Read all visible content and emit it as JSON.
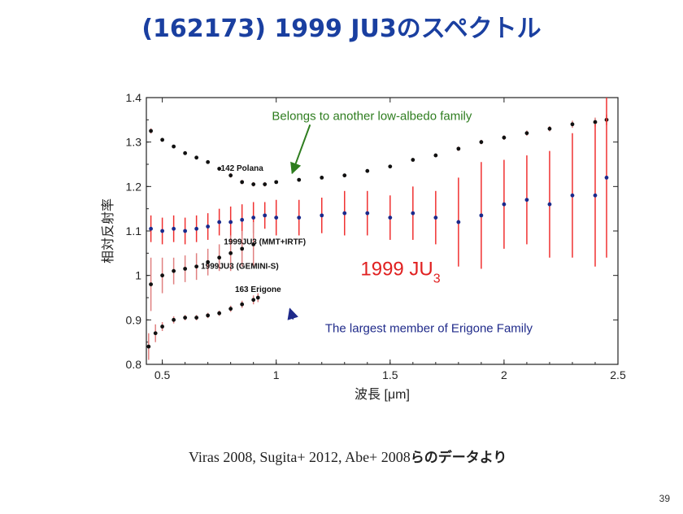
{
  "slide": {
    "title": "(162173) 1999 JU3のスペクトル",
    "citation_latin": "Viras 2008, Sugita+ 2012, Abe+ 2008",
    "citation_jp": "らのデータより",
    "page_number": "39"
  },
  "chart_data": {
    "type": "scatter",
    "xlabel": "波長 [μm]",
    "ylabel": "相対反射率",
    "xlim": [
      0.43,
      2.5
    ],
    "ylim": [
      0.8,
      1.4
    ],
    "xticks": [
      "0.5",
      "1",
      "1.5",
      "2",
      "2.5"
    ],
    "yticks": [
      "0.8",
      "0.9",
      "1",
      "1.1",
      "1.2",
      "1.3",
      "1.4"
    ],
    "grid": false,
    "series": [
      {
        "name": "142 Polana",
        "color": "#111111",
        "errorColor": "#e08080",
        "x": [
          0.45,
          0.5,
          0.55,
          0.6,
          0.65,
          0.7,
          0.75,
          0.8,
          0.85,
          0.9,
          0.95,
          1.0,
          1.1,
          1.2,
          1.3,
          1.4,
          1.5,
          1.6,
          1.7,
          1.8,
          1.9,
          2.0,
          2.1,
          2.2,
          2.3,
          2.4,
          2.45
        ],
        "y": [
          1.325,
          1.305,
          1.29,
          1.275,
          1.265,
          1.255,
          1.24,
          1.225,
          1.21,
          1.205,
          1.205,
          1.21,
          1.215,
          1.22,
          1.225,
          1.235,
          1.245,
          1.26,
          1.27,
          1.285,
          1.3,
          1.31,
          1.32,
          1.33,
          1.34,
          1.345,
          1.35
        ],
        "err": [
          0.006,
          0.004,
          0.004,
          0.004,
          0.004,
          0.004,
          0.004,
          0.005,
          0.005,
          0.005,
          0.005,
          0.004,
          0.004,
          0.004,
          0.004,
          0.004,
          0.004,
          0.004,
          0.004,
          0.005,
          0.005,
          0.005,
          0.006,
          0.006,
          0.008,
          0.01,
          0.012
        ]
      },
      {
        "name": "1999JU3 (MMT+IRTF)",
        "color": "#1a2a8c",
        "errorColor": "#f03030",
        "x": [
          0.45,
          0.5,
          0.55,
          0.6,
          0.65,
          0.7,
          0.75,
          0.8,
          0.85,
          0.9,
          0.95,
          1.0,
          1.1,
          1.2,
          1.3,
          1.4,
          1.5,
          1.6,
          1.7,
          1.8,
          1.9,
          2.0,
          2.1,
          2.2,
          2.3,
          2.4,
          2.45
        ],
        "y": [
          1.105,
          1.1,
          1.105,
          1.1,
          1.105,
          1.11,
          1.12,
          1.12,
          1.125,
          1.13,
          1.135,
          1.13,
          1.13,
          1.135,
          1.14,
          1.14,
          1.13,
          1.14,
          1.13,
          1.12,
          1.135,
          1.16,
          1.17,
          1.16,
          1.18,
          1.18,
          1.22
        ],
        "err": [
          0.03,
          0.03,
          0.03,
          0.03,
          0.03,
          0.03,
          0.03,
          0.035,
          0.035,
          0.035,
          0.03,
          0.04,
          0.04,
          0.04,
          0.05,
          0.05,
          0.05,
          0.06,
          0.06,
          0.1,
          0.12,
          0.1,
          0.1,
          0.12,
          0.14,
          0.16,
          0.18
        ]
      },
      {
        "name": "1999JU3 (GEMINI-S)",
        "color": "#111111",
        "errorColor": "#e08080",
        "x": [
          0.45,
          0.5,
          0.55,
          0.6,
          0.65,
          0.7,
          0.75,
          0.8,
          0.85,
          0.9
        ],
        "y": [
          0.98,
          1.0,
          1.01,
          1.015,
          1.02,
          1.03,
          1.04,
          1.05,
          1.06,
          1.07
        ],
        "err": [
          0.06,
          0.04,
          0.03,
          0.03,
          0.03,
          0.03,
          0.03,
          0.04,
          0.04,
          0.05
        ]
      },
      {
        "name": "163 Erigone",
        "color": "#111111",
        "errorColor": "#e08080",
        "x": [
          0.44,
          0.47,
          0.5,
          0.55,
          0.6,
          0.65,
          0.7,
          0.75,
          0.8,
          0.85,
          0.9,
          0.92
        ],
        "y": [
          0.84,
          0.87,
          0.885,
          0.9,
          0.905,
          0.905,
          0.91,
          0.915,
          0.925,
          0.935,
          0.945,
          0.95
        ],
        "err": [
          0.03,
          0.02,
          0.01,
          0.008,
          0.006,
          0.006,
          0.006,
          0.006,
          0.007,
          0.008,
          0.01,
          0.01
        ]
      }
    ],
    "annotations": [
      {
        "text": "Belongs to another low-albedo family",
        "color": "#2e7d1f",
        "x": 1.42,
        "y": 1.35,
        "arrowTo": [
          1.07,
          1.23
        ]
      },
      {
        "text": "142 Polana",
        "color": "#111111",
        "x": 0.85,
        "y": 1.235
      },
      {
        "text": "1999JU3 (MMT+IRTF)",
        "color": "#111111",
        "x": 0.95,
        "y": 1.07
      },
      {
        "text": "1999JU3 (GEMINI-S)",
        "color": "#111111",
        "x": 0.84,
        "y": 1.015
      },
      {
        "text": "163 Erigone",
        "color": "#111111",
        "x": 0.92,
        "y": 0.963
      },
      {
        "text": "The largest member of Erigone Family",
        "color": "#1f2a8a",
        "x": 1.67,
        "y": 0.872,
        "arrowTo": [
          1.06,
          0.925
        ]
      }
    ],
    "big_label": {
      "text": "1999 JU",
      "subscript": "3",
      "color": "#e02020",
      "x": 1.37,
      "y": 1.0
    }
  }
}
